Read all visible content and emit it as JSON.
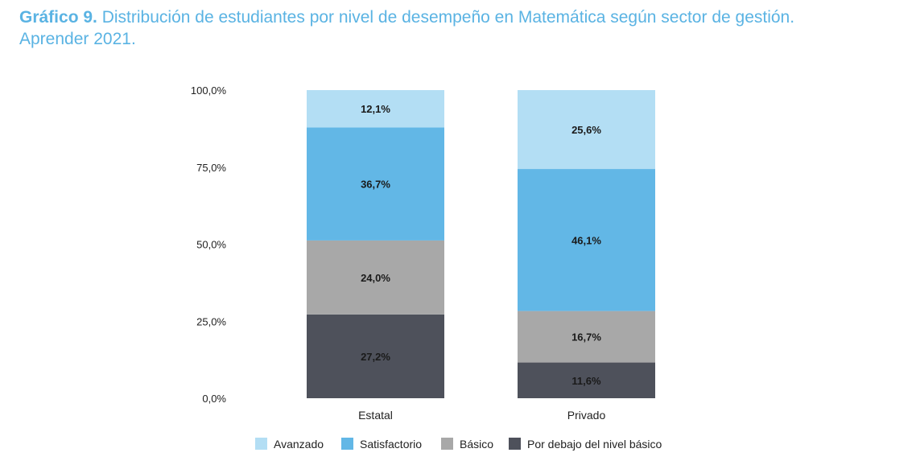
{
  "title": {
    "prefix": "Gráfico 9.",
    "text": "Distribución de estudiantes por nivel de desempeño en Matemática según sector de gestión.",
    "line2": "Aprender 2021."
  },
  "chart_data": {
    "type": "bar",
    "stacked": true,
    "title": "Gráfico 9. Distribución de estudiantes por nivel de desempeño en Matemática según sector de gestión. Aprender 2021.",
    "xlabel": "",
    "ylabel": "",
    "ylim": [
      0,
      100
    ],
    "y_ticks": [
      "0,0%",
      "25,0%",
      "50,0%",
      "75,0%",
      "100,0%"
    ],
    "categories": [
      "Estatal",
      "Privado"
    ],
    "series": [
      {
        "name": "Por debajo del nivel básico",
        "color": "#4e515b",
        "values": [
          27.2,
          11.6
        ],
        "labels": [
          "27,2%",
          "11,6%"
        ]
      },
      {
        "name": "Básico",
        "color": "#a8a8a8",
        "values": [
          24.0,
          16.7
        ],
        "labels": [
          "24,0%",
          "16,7%"
        ]
      },
      {
        "name": "Satisfactorio",
        "color": "#62b7e6",
        "values": [
          36.7,
          46.1
        ],
        "labels": [
          "36,7%",
          "46,1%"
        ]
      },
      {
        "name": "Avanzado",
        "color": "#b3def4",
        "values": [
          12.1,
          25.6
        ],
        "labels": [
          "12,1%",
          "25,6%"
        ]
      }
    ],
    "legend": {
      "position": "bottom",
      "order": [
        "Avanzado",
        "Satisfactorio",
        "Básico",
        "Por debajo del nivel básico"
      ]
    }
  }
}
